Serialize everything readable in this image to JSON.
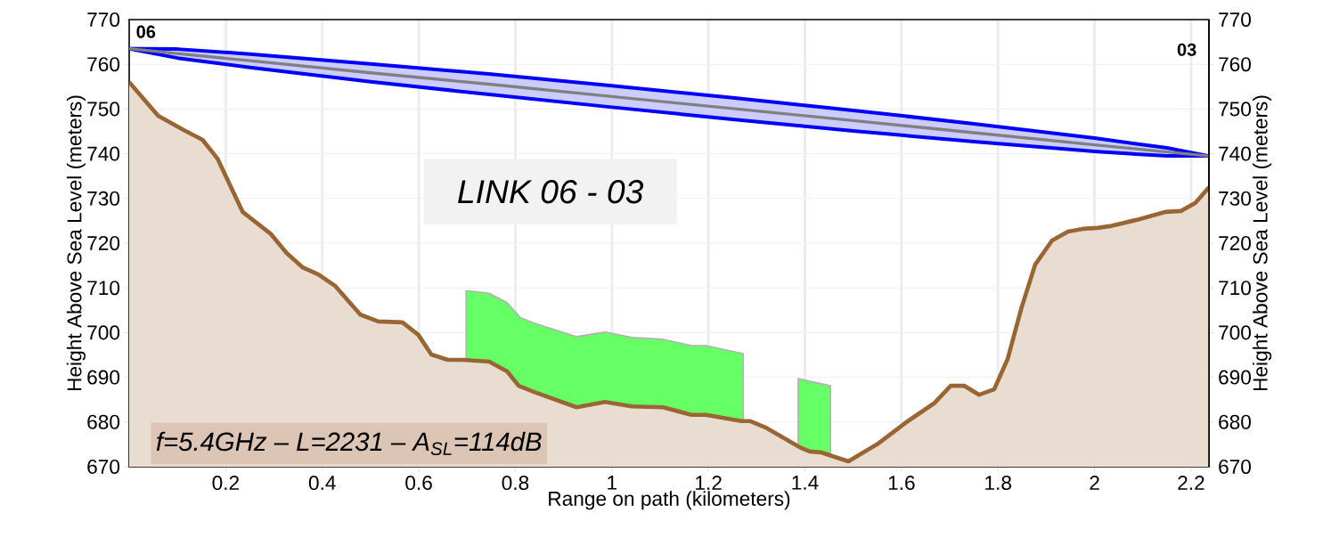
{
  "chart_data": {
    "type": "line",
    "xlabel": "Range on path (kilometers)",
    "ylabel": "Height Above Sea Level (meters)",
    "y2label": "Height Above Sea Level (meters)",
    "xlim": [
      0,
      2.237
    ],
    "ylim": [
      670,
      770
    ],
    "y2lim": [
      670,
      770
    ],
    "xticks": [
      0.2,
      0.4,
      0.6,
      0.8,
      1,
      1.2,
      1.4,
      1.6,
      1.8,
      2,
      2.2
    ],
    "yticks": [
      670,
      680,
      690,
      700,
      710,
      720,
      730,
      740,
      750,
      760,
      770
    ],
    "y2ticks": [
      670,
      680,
      690,
      700,
      710,
      720,
      730,
      740,
      750,
      760,
      770
    ],
    "grid": true,
    "marker": "none",
    "series": [
      {
        "type": "area",
        "color": "#66ff66",
        "x": [
          0.698,
          0.746,
          0.783,
          0.811,
          0.839,
          0.927,
          0.986,
          1.041,
          1.106,
          1.165,
          1.195,
          1.272
        ],
        "values": [
          709.4,
          708.8,
          706.7,
          703.3,
          702.1,
          699.1,
          700.1,
          698.9,
          698.5,
          697.1,
          697.1,
          695.3
        ]
      },
      {
        "type": "area",
        "color": "#66ff66",
        "x": [
          1.386,
          1.453
        ],
        "values": [
          689.7,
          688.1
        ]
      },
      {
        "type": "area",
        "color": "#996633",
        "x": [
          0,
          0.06,
          0.113,
          0.152,
          0.183,
          0.235,
          0.294,
          0.326,
          0.359,
          0.392,
          0.427,
          0.479,
          0.516,
          0.566,
          0.599,
          0.626,
          0.66,
          0.691,
          0.746,
          0.783,
          0.807,
          0.839,
          0.927,
          0.986,
          1.041,
          1.106,
          1.165,
          1.195,
          1.268,
          1.287,
          1.318,
          1.392,
          1.41,
          1.434,
          1.49,
          1.552,
          1.608,
          1.669,
          1.702,
          1.73,
          1.761,
          1.792,
          1.82,
          1.848,
          1.877,
          1.912,
          1.945,
          1.976,
          2.006,
          2.032,
          2.087,
          2.148,
          2.179,
          2.209,
          2.237
        ],
        "values": [
          756,
          748.5,
          745.3,
          743.1,
          738.9,
          727,
          722,
          717.8,
          714.6,
          713,
          710.4,
          704,
          702.5,
          702.3,
          699.5,
          695.1,
          693.9,
          693.9,
          693.5,
          691.3,
          688.1,
          686.7,
          683.3,
          684.5,
          683.5,
          683.3,
          681.6,
          681.6,
          680.2,
          680.2,
          678.8,
          674.2,
          673.4,
          673.2,
          671.2,
          675.2,
          679.8,
          684.3,
          688.1,
          688.1,
          686.1,
          687.3,
          694.1,
          705.3,
          715.2,
          720.6,
          722.6,
          723.2,
          723.4,
          723.8,
          725.2,
          727,
          727.2,
          729,
          732.5
        ]
      },
      {
        "color": "#808080",
        "x": [
          0,
          0.1,
          0.25,
          0.5,
          0.75,
          1.0,
          1.25,
          1.5,
          1.75,
          2.0,
          2.15,
          2.237
        ],
        "values": [
          763.5,
          762.4,
          760.8,
          758.1,
          755.5,
          752.8,
          750.1,
          747.4,
          744.7,
          742.0,
          740.4,
          739.5
        ],
        "upper": [
          763.5,
          763.4,
          762.3,
          760.1,
          757.8,
          755.2,
          752.5,
          749.7,
          746.7,
          743.5,
          741.3,
          739.5
        ],
        "lower": [
          763.5,
          761.4,
          759.3,
          756.1,
          753.2,
          750.4,
          747.7,
          745.1,
          742.7,
          740.5,
          739.5,
          739.5
        ]
      }
    ],
    "annotations": [
      "LINK 06 - 03",
      "f=5.4GHz – L=2231 – A$_{SL}$=114dB",
      "06",
      "03"
    ]
  }
}
